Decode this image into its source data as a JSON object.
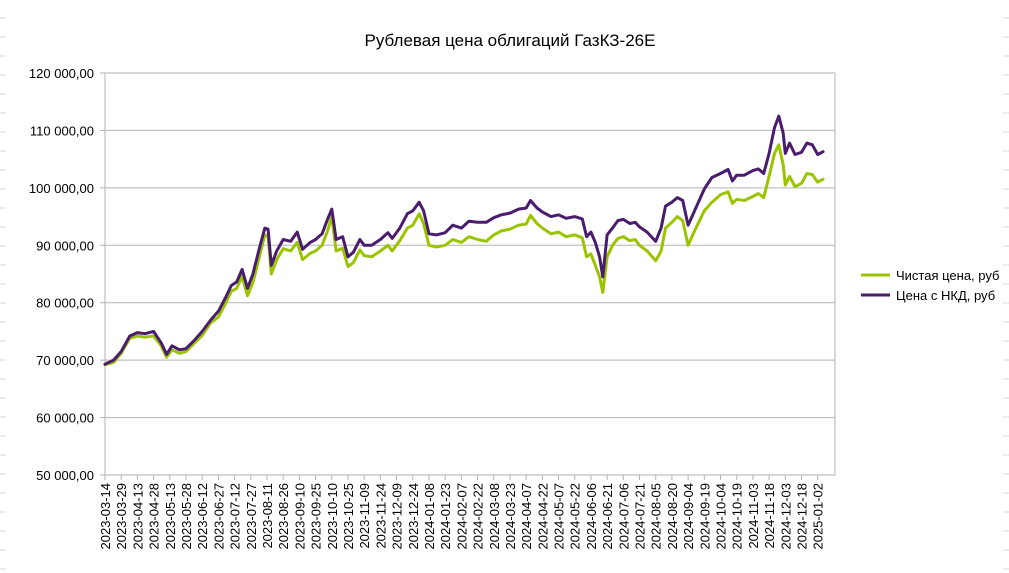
{
  "chart_data": {
    "type": "line",
    "title": "Рублевая цена облигаций ГазКЗ-26E",
    "xlabel": "",
    "ylabel": "",
    "ylim": [
      50000,
      120000
    ],
    "ytick_values": [
      50000,
      60000,
      70000,
      80000,
      90000,
      100000,
      110000,
      120000
    ],
    "ytick_labels": [
      "50 000,00",
      "60 000,00",
      "70 000,00",
      "80 000,00",
      "90 000,00",
      "100 000,00",
      "110 000,00",
      "120 000,00"
    ],
    "xlim": [
      "2023-03-14",
      "2025-01-18"
    ],
    "x_tick_labels": [
      "2023-03-14",
      "2023-03-29",
      "2023-04-13",
      "2023-04-28",
      "2023-05-13",
      "2023-05-28",
      "2023-06-12",
      "2023-06-27",
      "2023-07-12",
      "2023-07-27",
      "2023-08-11",
      "2023-08-26",
      "2023-09-10",
      "2023-09-25",
      "2023-10-10",
      "2023-10-25",
      "2023-11-09",
      "2023-11-24",
      "2023-12-09",
      "2023-12-24",
      "2024-01-08",
      "2024-01-23",
      "2024-02-07",
      "2024-02-22",
      "2024-03-08",
      "2024-03-23",
      "2024-04-07",
      "2024-04-22",
      "2024-05-07",
      "2024-05-22",
      "2024-06-06",
      "2024-06-21",
      "2024-07-06",
      "2024-07-21",
      "2024-08-05",
      "2024-08-20",
      "2024-09-04",
      "2024-09-19",
      "2024-10-04",
      "2024-10-19",
      "2024-11-03",
      "2024-11-18",
      "2024-12-03",
      "2024-12-18",
      "2025-01-02"
    ],
    "grid": "horizontal",
    "legend_position": "right",
    "series": [
      {
        "name": "Чистая цена, руб",
        "color": "#9bc400",
        "points": [
          [
            "2023-03-14",
            69200
          ],
          [
            "2023-03-22",
            69600
          ],
          [
            "2023-03-29",
            71200
          ],
          [
            "2023-04-06",
            73800
          ],
          [
            "2023-04-13",
            74200
          ],
          [
            "2023-04-20",
            74000
          ],
          [
            "2023-04-28",
            74200
          ],
          [
            "2023-05-05",
            72500
          ],
          [
            "2023-05-10",
            70500
          ],
          [
            "2023-05-15",
            71800
          ],
          [
            "2023-05-22",
            71200
          ],
          [
            "2023-05-28",
            71500
          ],
          [
            "2023-06-05",
            73000
          ],
          [
            "2023-06-12",
            74300
          ],
          [
            "2023-06-20",
            76500
          ],
          [
            "2023-06-27",
            77500
          ],
          [
            "2023-07-04",
            80000
          ],
          [
            "2023-07-09",
            82000
          ],
          [
            "2023-07-14",
            82500
          ],
          [
            "2023-07-19",
            84600
          ],
          [
            "2023-07-24",
            81200
          ],
          [
            "2023-07-29",
            83500
          ],
          [
            "2023-08-04",
            88000
          ],
          [
            "2023-08-09",
            91800
          ],
          [
            "2023-08-12",
            91500
          ],
          [
            "2023-08-15",
            85000
          ],
          [
            "2023-08-20",
            87500
          ],
          [
            "2023-08-26",
            89400
          ],
          [
            "2023-09-02",
            89000
          ],
          [
            "2023-09-08",
            90500
          ],
          [
            "2023-09-13",
            87500
          ],
          [
            "2023-09-20",
            88600
          ],
          [
            "2023-09-25",
            89000
          ],
          [
            "2023-10-01",
            90000
          ],
          [
            "2023-10-06",
            92500
          ],
          [
            "2023-10-10",
            95000
          ],
          [
            "2023-10-14",
            89000
          ],
          [
            "2023-10-20",
            89500
          ],
          [
            "2023-10-25",
            86300
          ],
          [
            "2023-10-30",
            87000
          ],
          [
            "2023-11-05",
            89200
          ],
          [
            "2023-11-09",
            88200
          ],
          [
            "2023-11-16",
            88000
          ],
          [
            "2023-11-24",
            89000
          ],
          [
            "2023-12-01",
            90000
          ],
          [
            "2023-12-05",
            89000
          ],
          [
            "2023-12-12",
            90800
          ],
          [
            "2023-12-19",
            93000
          ],
          [
            "2023-12-24",
            93500
          ],
          [
            "2023-12-30",
            95500
          ],
          [
            "2024-01-03",
            93800
          ],
          [
            "2024-01-08",
            90000
          ],
          [
            "2024-01-15",
            89700
          ],
          [
            "2024-01-23",
            90000
          ],
          [
            "2024-01-30",
            91000
          ],
          [
            "2024-02-07",
            90500
          ],
          [
            "2024-02-14",
            91500
          ],
          [
            "2024-02-22",
            91000
          ],
          [
            "2024-03-01",
            90700
          ],
          [
            "2024-03-08",
            91800
          ],
          [
            "2024-03-15",
            92500
          ],
          [
            "2024-03-23",
            92800
          ],
          [
            "2024-03-31",
            93500
          ],
          [
            "2024-04-07",
            93700
          ],
          [
            "2024-04-11",
            95200
          ],
          [
            "2024-04-17",
            93800
          ],
          [
            "2024-04-22",
            93000
          ],
          [
            "2024-04-30",
            92000
          ],
          [
            "2024-05-07",
            92300
          ],
          [
            "2024-05-14",
            91500
          ],
          [
            "2024-05-22",
            91800
          ],
          [
            "2024-05-29",
            91300
          ],
          [
            "2024-06-02",
            88000
          ],
          [
            "2024-06-06",
            88500
          ],
          [
            "2024-06-10",
            86500
          ],
          [
            "2024-06-14",
            84500
          ],
          [
            "2024-06-17",
            81800
          ],
          [
            "2024-06-21",
            88000
          ],
          [
            "2024-06-26",
            90000
          ],
          [
            "2024-07-01",
            91200
          ],
          [
            "2024-07-06",
            91500
          ],
          [
            "2024-07-12",
            90800
          ],
          [
            "2024-07-17",
            91000
          ],
          [
            "2024-07-21",
            90000
          ],
          [
            "2024-07-28",
            89000
          ],
          [
            "2024-08-05",
            87300
          ],
          [
            "2024-08-10",
            89000
          ],
          [
            "2024-08-14",
            93000
          ],
          [
            "2024-08-20",
            94000
          ],
          [
            "2024-08-25",
            95000
          ],
          [
            "2024-08-30",
            94300
          ],
          [
            "2024-09-04",
            90000
          ],
          [
            "2024-09-10",
            92500
          ],
          [
            "2024-09-19",
            96000
          ],
          [
            "2024-09-26",
            97500
          ],
          [
            "2024-10-04",
            98800
          ],
          [
            "2024-10-11",
            99300
          ],
          [
            "2024-10-15",
            97300
          ],
          [
            "2024-10-19",
            98000
          ],
          [
            "2024-10-26",
            97800
          ],
          [
            "2024-11-03",
            98500
          ],
          [
            "2024-11-08",
            99000
          ],
          [
            "2024-11-13",
            98300
          ],
          [
            "2024-11-18",
            102000
          ],
          [
            "2024-11-23",
            106000
          ],
          [
            "2024-11-27",
            107500
          ],
          [
            "2024-12-01",
            104000
          ],
          [
            "2024-12-03",
            100500
          ],
          [
            "2024-12-07",
            102000
          ],
          [
            "2024-12-12",
            100200
          ],
          [
            "2024-12-18",
            100800
          ],
          [
            "2024-12-23",
            102500
          ],
          [
            "2024-12-28",
            102300
          ],
          [
            "2025-01-02",
            101000
          ],
          [
            "2025-01-07",
            101500
          ]
        ]
      },
      {
        "name": "Цена с НКД, руб",
        "color": "#4a1c6e",
        "points": [
          [
            "2023-03-14",
            69300
          ],
          [
            "2023-03-22",
            70000
          ],
          [
            "2023-03-29",
            71500
          ],
          [
            "2023-04-06",
            74200
          ],
          [
            "2023-04-13",
            74800
          ],
          [
            "2023-04-20",
            74600
          ],
          [
            "2023-04-28",
            75000
          ],
          [
            "2023-05-05",
            73000
          ],
          [
            "2023-05-10",
            71000
          ],
          [
            "2023-05-15",
            72500
          ],
          [
            "2023-05-22",
            71800
          ],
          [
            "2023-05-28",
            72000
          ],
          [
            "2023-06-05",
            73500
          ],
          [
            "2023-06-12",
            75000
          ],
          [
            "2023-06-20",
            77000
          ],
          [
            "2023-06-27",
            78500
          ],
          [
            "2023-07-04",
            81000
          ],
          [
            "2023-07-09",
            83000
          ],
          [
            "2023-07-14",
            83600
          ],
          [
            "2023-07-19",
            85800
          ],
          [
            "2023-07-24",
            82500
          ],
          [
            "2023-07-29",
            85000
          ],
          [
            "2023-08-04",
            89500
          ],
          [
            "2023-08-09",
            93000
          ],
          [
            "2023-08-12",
            92800
          ],
          [
            "2023-08-15",
            86500
          ],
          [
            "2023-08-20",
            89000
          ],
          [
            "2023-08-26",
            91000
          ],
          [
            "2023-09-02",
            90700
          ],
          [
            "2023-09-08",
            92300
          ],
          [
            "2023-09-13",
            89300
          ],
          [
            "2023-09-20",
            90500
          ],
          [
            "2023-09-25",
            91000
          ],
          [
            "2023-10-01",
            92000
          ],
          [
            "2023-10-06",
            94500
          ],
          [
            "2023-10-10",
            96300
          ],
          [
            "2023-10-14",
            91000
          ],
          [
            "2023-10-20",
            91500
          ],
          [
            "2023-10-25",
            88000
          ],
          [
            "2023-10-30",
            88800
          ],
          [
            "2023-11-05",
            91000
          ],
          [
            "2023-11-09",
            90000
          ],
          [
            "2023-11-16",
            90000
          ],
          [
            "2023-11-24",
            91000
          ],
          [
            "2023-12-01",
            92200
          ],
          [
            "2023-12-05",
            91200
          ],
          [
            "2023-12-12",
            93000
          ],
          [
            "2023-12-19",
            95500
          ],
          [
            "2023-12-24",
            96000
          ],
          [
            "2023-12-30",
            97500
          ],
          [
            "2024-01-03",
            96000
          ],
          [
            "2024-01-08",
            92000
          ],
          [
            "2024-01-15",
            91800
          ],
          [
            "2024-01-23",
            92200
          ],
          [
            "2024-01-30",
            93500
          ],
          [
            "2024-02-07",
            93000
          ],
          [
            "2024-02-14",
            94200
          ],
          [
            "2024-02-22",
            94000
          ],
          [
            "2024-03-01",
            94000
          ],
          [
            "2024-03-08",
            94800
          ],
          [
            "2024-03-15",
            95300
          ],
          [
            "2024-03-23",
            95600
          ],
          [
            "2024-03-31",
            96300
          ],
          [
            "2024-04-07",
            96500
          ],
          [
            "2024-04-11",
            97800
          ],
          [
            "2024-04-17",
            96500
          ],
          [
            "2024-04-22",
            95800
          ],
          [
            "2024-04-30",
            95000
          ],
          [
            "2024-05-07",
            95300
          ],
          [
            "2024-05-14",
            94700
          ],
          [
            "2024-05-22",
            95000
          ],
          [
            "2024-05-29",
            94600
          ],
          [
            "2024-06-02",
            91500
          ],
          [
            "2024-06-06",
            92300
          ],
          [
            "2024-06-10",
            90500
          ],
          [
            "2024-06-14",
            88000
          ],
          [
            "2024-06-17",
            84500
          ],
          [
            "2024-06-21",
            91800
          ],
          [
            "2024-06-26",
            93000
          ],
          [
            "2024-07-01",
            94300
          ],
          [
            "2024-07-06",
            94500
          ],
          [
            "2024-07-12",
            93800
          ],
          [
            "2024-07-17",
            94000
          ],
          [
            "2024-07-21",
            93200
          ],
          [
            "2024-07-28",
            92300
          ],
          [
            "2024-08-05",
            90700
          ],
          [
            "2024-08-10",
            93000
          ],
          [
            "2024-08-14",
            96800
          ],
          [
            "2024-08-20",
            97500
          ],
          [
            "2024-08-25",
            98300
          ],
          [
            "2024-08-30",
            97800
          ],
          [
            "2024-09-04",
            93500
          ],
          [
            "2024-09-10",
            96000
          ],
          [
            "2024-09-19",
            99800
          ],
          [
            "2024-09-26",
            101800
          ],
          [
            "2024-10-04",
            102500
          ],
          [
            "2024-10-11",
            103200
          ],
          [
            "2024-10-15",
            101200
          ],
          [
            "2024-10-19",
            102200
          ],
          [
            "2024-10-26",
            102200
          ],
          [
            "2024-11-03",
            103000
          ],
          [
            "2024-11-08",
            103300
          ],
          [
            "2024-11-13",
            102500
          ],
          [
            "2024-11-18",
            106000
          ],
          [
            "2024-11-23",
            110500
          ],
          [
            "2024-11-27",
            112500
          ],
          [
            "2024-12-01",
            109500
          ],
          [
            "2024-12-03",
            106000
          ],
          [
            "2024-12-07",
            107800
          ],
          [
            "2024-12-12",
            105800
          ],
          [
            "2024-12-18",
            106200
          ],
          [
            "2024-12-23",
            107800
          ],
          [
            "2024-12-28",
            107500
          ],
          [
            "2025-01-02",
            105800
          ],
          [
            "2025-01-07",
            106300
          ]
        ]
      }
    ]
  }
}
